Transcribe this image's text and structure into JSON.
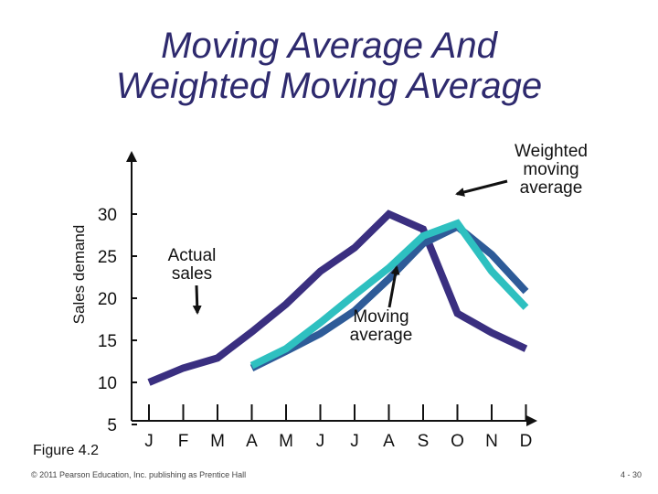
{
  "slide": {
    "title_line1": "Moving Average And",
    "title_line2": "Weighted Moving Average",
    "figure_label": "Figure 4.2",
    "footer": "© 2011 Pearson Education, Inc. publishing as Prentice Hall",
    "page_number": "4 - 30"
  },
  "annotations": {
    "weighted": [
      "Weighted",
      "moving",
      "average"
    ],
    "actual": [
      "Actual",
      "sales"
    ],
    "moving": [
      "Moving",
      "average"
    ]
  },
  "colors": {
    "actual": "#3a2f80",
    "moving": "#2e5b98",
    "weighted": "#2ec0c0",
    "axis": "#111111",
    "title": "#2e2a6e"
  },
  "chart_data": {
    "type": "line",
    "ylabel": "Sales demand",
    "xlabel": "",
    "ylim": [
      5,
      30
    ],
    "yticks": [
      5,
      10,
      15,
      20,
      25,
      30
    ],
    "categories": [
      "J",
      "F",
      "M",
      "A",
      "M",
      "J",
      "J",
      "A",
      "S",
      "O",
      "N",
      "D"
    ],
    "series": [
      {
        "key": "actual",
        "values": [
          10,
          11.7,
          12.9,
          16,
          19.3,
          23.2,
          26,
          30,
          28.2,
          18.2,
          15.9,
          14
        ]
      },
      {
        "key": "moving",
        "values": [
          null,
          null,
          null,
          11.7,
          13.7,
          15.8,
          18.5,
          22.3,
          26.5,
          28.5,
          25.2,
          20.8
        ]
      },
      {
        "key": "weighted",
        "values": [
          null,
          null,
          null,
          12,
          14,
          17.1,
          20.4,
          23.6,
          27.4,
          28.9,
          23.2,
          18.9
        ]
      }
    ]
  }
}
